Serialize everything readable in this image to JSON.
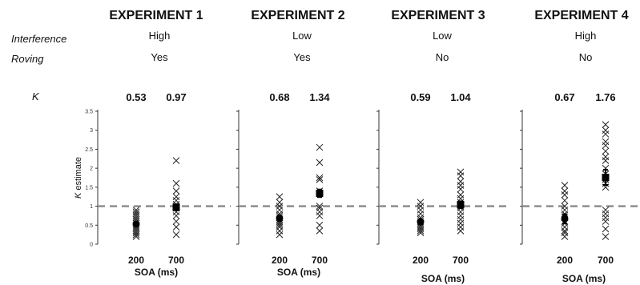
{
  "row_labels": {
    "interference": "Interference",
    "roving": "Roving",
    "k": "K"
  },
  "experiments": [
    {
      "title": "EXPERIMENT 1",
      "interference": "High",
      "roving": "Yes",
      "k_values": [
        "0.53",
        "0.97"
      ]
    },
    {
      "title": "EXPERIMENT 2",
      "interference": "Low",
      "roving": "Yes",
      "k_values": [
        "0.68",
        "1.34"
      ]
    },
    {
      "title": "EXPERIMENT 3",
      "interference": "Low",
      "roving": "No",
      "k_values": [
        "0.59",
        "1.04"
      ]
    },
    {
      "title": "EXPERIMENT 4",
      "interference": "High",
      "roving": "No",
      "k_values": [
        "0.67",
        "1.76"
      ]
    }
  ],
  "chart_data": [
    {
      "type": "scatter",
      "title": "EXPERIMENT 1",
      "xlabel": "SOA (ms)",
      "ylabel": "K estimate",
      "categories": [
        "200",
        "700"
      ],
      "ylim": [
        0,
        3.5
      ],
      "yticks": [
        "0",
        "0.5",
        "1",
        "1.5",
        "2",
        "2.5",
        "3",
        "3.5"
      ],
      "reference_line": 1,
      "points": [
        [
          0.2,
          0.25,
          0.3,
          0.35,
          0.4,
          0.45,
          0.5,
          0.55,
          0.6,
          0.65,
          0.7,
          0.75,
          0.8,
          0.85,
          0.9
        ],
        [
          0.25,
          0.45,
          0.6,
          0.75,
          0.85,
          0.95,
          1.05,
          1.15,
          1.25,
          1.4,
          1.6,
          2.2
        ]
      ],
      "means": [
        0.53,
        0.97
      ],
      "errors": [
        0.05,
        0.08
      ]
    },
    {
      "type": "scatter",
      "title": "EXPERIMENT 2",
      "xlabel": "SOA (ms)",
      "ylabel": "K estimate",
      "categories": [
        "200",
        "700"
      ],
      "ylim": [
        0,
        3.5
      ],
      "yticks": [
        "0",
        "0.5",
        "1",
        "1.5",
        "2",
        "2.5",
        "3",
        "3.5"
      ],
      "reference_line": 1,
      "points": [
        [
          0.25,
          0.35,
          0.45,
          0.5,
          0.55,
          0.6,
          0.65,
          0.7,
          0.75,
          0.8,
          0.9,
          1.0,
          1.1,
          1.25
        ],
        [
          0.35,
          0.5,
          0.75,
          0.85,
          0.95,
          1.0,
          1.4,
          1.7,
          1.75,
          2.15,
          2.55
        ]
      ],
      "means": [
        0.68,
        1.34
      ],
      "errors": [
        0.07,
        0.1
      ]
    },
    {
      "type": "scatter",
      "title": "EXPERIMENT 3",
      "xlabel": "SOA (ms)",
      "ylabel": "K estimate",
      "categories": [
        "200",
        "700"
      ],
      "ylim": [
        0,
        3.5
      ],
      "yticks": [
        "0",
        "0.5",
        "1",
        "1.5",
        "2",
        "2.5",
        "3",
        "3.5"
      ],
      "reference_line": 1,
      "points": [
        [
          0.3,
          0.35,
          0.4,
          0.45,
          0.5,
          0.55,
          0.6,
          0.65,
          0.7,
          0.8,
          0.9,
          1.0,
          1.1
        ],
        [
          0.35,
          0.45,
          0.55,
          0.65,
          0.75,
          0.85,
          0.95,
          1.0,
          1.1,
          1.2,
          1.3,
          1.45,
          1.55,
          1.65,
          1.8,
          1.9
        ]
      ],
      "means": [
        0.59,
        1.04
      ],
      "errors": [
        0.06,
        0.09
      ]
    },
    {
      "type": "scatter",
      "title": "EXPERIMENT 4",
      "xlabel": "SOA (ms)",
      "ylabel": "K estimate",
      "categories": [
        "200",
        "700"
      ],
      "ylim": [
        0,
        3.5
      ],
      "yticks": [
        "0",
        "0.5",
        "1",
        "1.5",
        "2",
        "2.5",
        "3",
        "3.5"
      ],
      "reference_line": 1,
      "points": [
        [
          0.2,
          0.3,
          0.35,
          0.45,
          0.55,
          0.6,
          0.7,
          0.8,
          0.9,
          1.0,
          1.15,
          1.3,
          1.4,
          1.55
        ],
        [
          0.2,
          0.4,
          0.6,
          0.7,
          0.8,
          0.9,
          1.5,
          1.6,
          1.7,
          1.85,
          2.0,
          2.2,
          2.3,
          2.45,
          2.6,
          2.7,
          2.9,
          3.0,
          3.15
        ]
      ],
      "means": [
        0.67,
        1.76
      ],
      "errors": [
        0.12,
        0.2
      ]
    }
  ]
}
